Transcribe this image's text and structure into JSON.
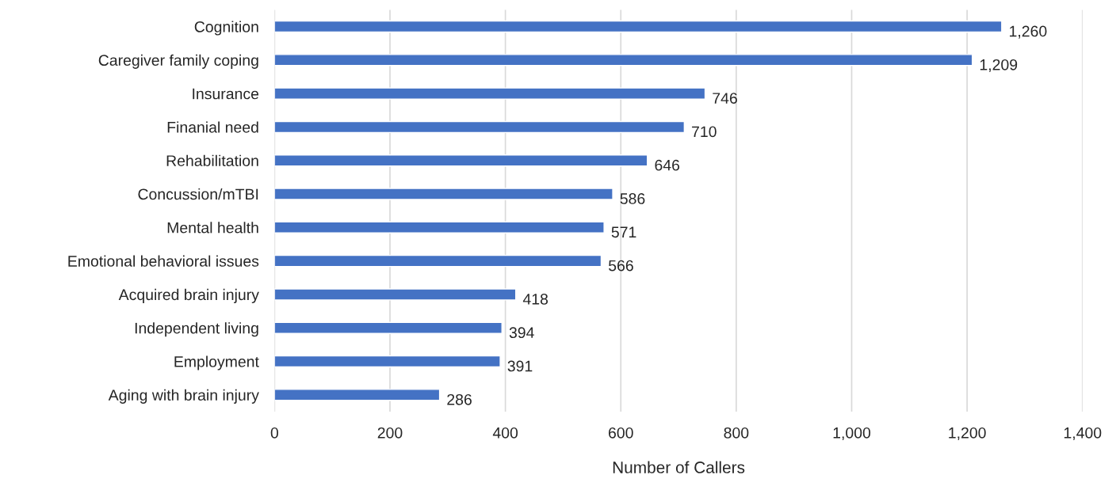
{
  "chart_data": {
    "type": "bar",
    "orientation": "horizontal",
    "xlabel": "Number of Callers",
    "categories": [
      "Cognition",
      "Caregiver family coping",
      "Insurance",
      "Finanial need",
      "Rehabilitation",
      "Concussion/mTBI",
      "Mental health",
      "Emotional behavioral issues",
      "Acquired brain injury",
      "Independent living",
      "Employment",
      "Aging with brain injury"
    ],
    "values": [
      1260,
      1209,
      746,
      710,
      646,
      586,
      571,
      566,
      418,
      394,
      391,
      286
    ],
    "value_labels": [
      "1,260",
      "1,209",
      "746",
      "710",
      "646",
      "586",
      "571",
      "566",
      "418",
      "394",
      "391",
      "286"
    ],
    "color": "#4472c4",
    "xlim": [
      0,
      1400
    ],
    "xticks": [
      0,
      200,
      400,
      600,
      800,
      {
        "value": 1000,
        "label": "1,000"
      },
      {
        "value": 1200,
        "label": "1,200"
      },
      {
        "value": 1400,
        "label": "1,400"
      }
    ],
    "grid": "x"
  }
}
